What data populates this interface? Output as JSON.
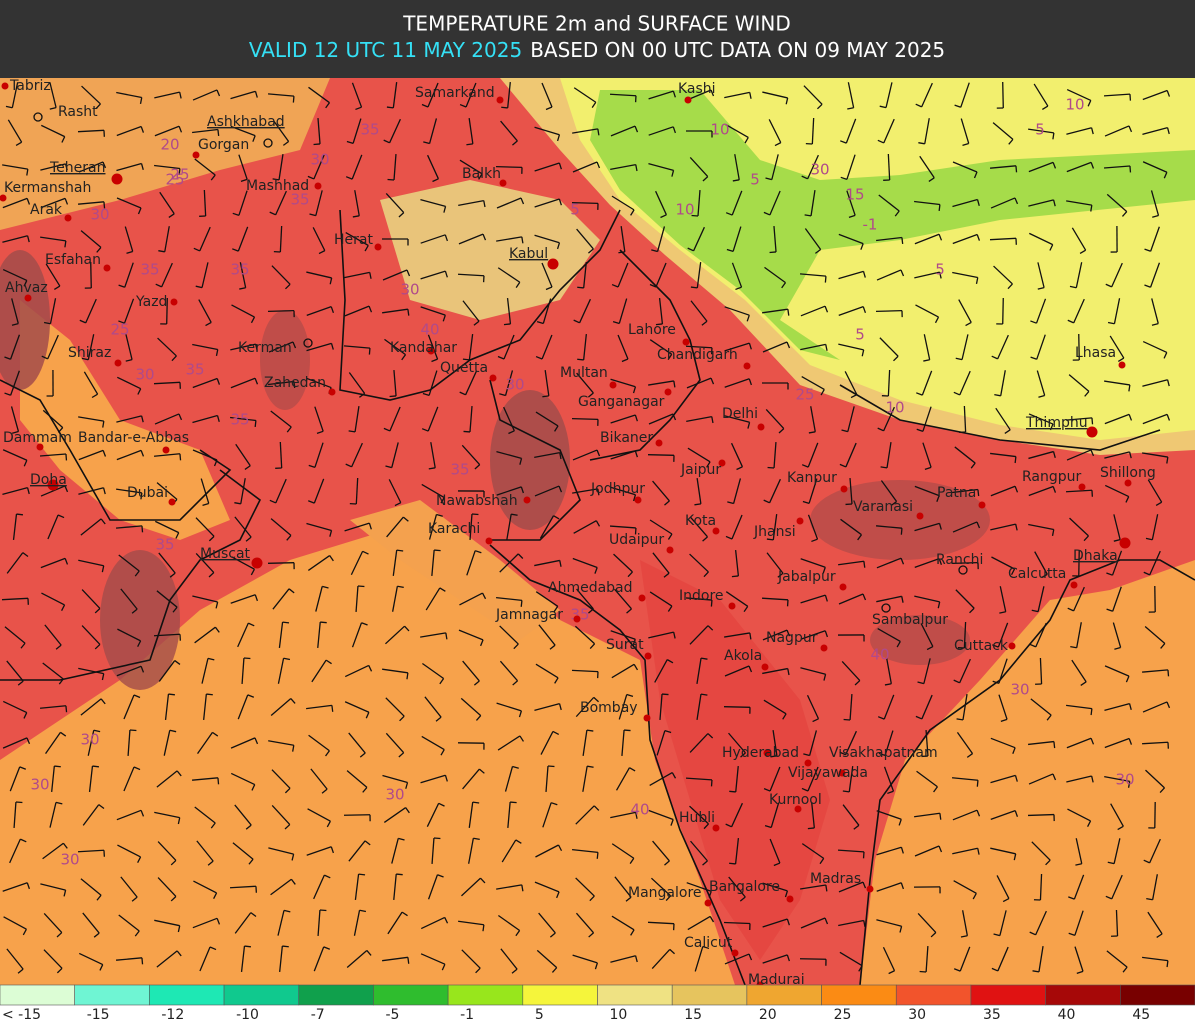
{
  "header": {
    "title": "TEMPERATURE 2m and SURFACE WIND",
    "valid": "VALID 12 UTC 11 MAY 2025",
    "based": "BASED ON 00 UTC DATA ON 09 MAY 2025"
  },
  "cities": [
    {
      "name": "Tabriz",
      "capital": false
    },
    {
      "name": "Rasht",
      "capital": false
    },
    {
      "name": "Ashkhabad",
      "capital": true
    },
    {
      "name": "Gorgan",
      "capital": false
    },
    {
      "name": "Teheran",
      "capital": true
    },
    {
      "name": "Mashhad",
      "capital": false
    },
    {
      "name": "Kermanshah",
      "capital": false
    },
    {
      "name": "Arak",
      "capital": false
    },
    {
      "name": "Samarkand",
      "capital": false
    },
    {
      "name": "Kashi",
      "capital": false
    },
    {
      "name": "Balkh",
      "capital": false
    },
    {
      "name": "Herat",
      "capital": false
    },
    {
      "name": "Kabul",
      "capital": true
    },
    {
      "name": "Esfahan",
      "capital": false
    },
    {
      "name": "Ahvaz",
      "capital": false
    },
    {
      "name": "Yazd",
      "capital": false
    },
    {
      "name": "Lahore",
      "capital": false
    },
    {
      "name": "Shiraz",
      "capital": false
    },
    {
      "name": "Kerman",
      "capital": false
    },
    {
      "name": "Kandahar",
      "capital": false
    },
    {
      "name": "Chandigarh",
      "capital": false
    },
    {
      "name": "Lhasa",
      "capital": false
    },
    {
      "name": "Multan",
      "capital": false
    },
    {
      "name": "Quetta",
      "capital": false
    },
    {
      "name": "Zahedan",
      "capital": false
    },
    {
      "name": "Ganganagar",
      "capital": false
    },
    {
      "name": "Delhi",
      "capital": false
    },
    {
      "name": "Thimphu",
      "capital": true
    },
    {
      "name": "Dammam",
      "capital": false
    },
    {
      "name": "Bandar-e-Abbas",
      "capital": false
    },
    {
      "name": "Bikaner",
      "capital": false
    },
    {
      "name": "Jaipur",
      "capital": false
    },
    {
      "name": "Shillong",
      "capital": false
    },
    {
      "name": "Kanpur",
      "capital": false
    },
    {
      "name": "Rangpur",
      "capital": false
    },
    {
      "name": "Doha",
      "capital": true
    },
    {
      "name": "Dubai",
      "capital": false
    },
    {
      "name": "Jodhpur",
      "capital": false
    },
    {
      "name": "Patna",
      "capital": false
    },
    {
      "name": "Nawabshah",
      "capital": false
    },
    {
      "name": "Varanasi",
      "capital": false
    },
    {
      "name": "Kota",
      "capital": false
    },
    {
      "name": "Karachi",
      "capital": false
    },
    {
      "name": "Jhansi",
      "capital": false
    },
    {
      "name": "Udaipur",
      "capital": false
    },
    {
      "name": "Dhaka",
      "capital": true
    },
    {
      "name": "Muscat",
      "capital": true
    },
    {
      "name": "Ranchi",
      "capital": false
    },
    {
      "name": "Calcutta",
      "capital": false
    },
    {
      "name": "Jabalpur",
      "capital": false
    },
    {
      "name": "Ahmedabad",
      "capital": false
    },
    {
      "name": "Indore",
      "capital": false
    },
    {
      "name": "Jamnagar",
      "capital": false
    },
    {
      "name": "Sambalpur",
      "capital": false
    },
    {
      "name": "Surat",
      "capital": false
    },
    {
      "name": "Nagpur",
      "capital": false
    },
    {
      "name": "Cuttack",
      "capital": false
    },
    {
      "name": "Akola",
      "capital": false
    },
    {
      "name": "Bombay",
      "capital": false
    },
    {
      "name": "Hyderabad",
      "capital": false
    },
    {
      "name": "Visakhapatnam",
      "capital": false
    },
    {
      "name": "Vijayawada",
      "capital": false
    },
    {
      "name": "Kurnool",
      "capital": false
    },
    {
      "name": "Hubli",
      "capital": false
    },
    {
      "name": "Madras",
      "capital": false
    },
    {
      "name": "Bangalore",
      "capital": false
    },
    {
      "name": "Mangalore",
      "capital": false
    },
    {
      "name": "Calicut",
      "capital": false
    },
    {
      "name": "Madurai",
      "capital": false
    }
  ],
  "contour_labels": [
    35,
    30,
    25,
    20,
    25,
    35,
    30,
    35,
    25,
    35,
    35,
    30,
    35,
    40,
    35,
    30,
    30,
    30,
    30,
    35,
    30,
    30,
    35,
    40,
    40,
    30,
    30,
    10,
    5,
    10,
    30,
    15,
    5,
    -1,
    5,
    10,
    5,
    5,
    25,
    10
  ],
  "legend": {
    "labels": [
      "< -15",
      "-15",
      "-12",
      "-10",
      "-7",
      "-5",
      "-1",
      "5",
      "10",
      "15",
      "20",
      "25",
      "30",
      "35",
      "40",
      "45"
    ],
    "colors": [
      "#dcfdd5",
      "#6ff5d3",
      "#1ee8b4",
      "#10c98e",
      "#10a04c",
      "#2fbd2e",
      "#98e61c",
      "#f5f53b",
      "#efe283",
      "#e6c45e",
      "#efa630",
      "#fb8b14",
      "#f2542c",
      "#e01212",
      "#a60808",
      "#780000"
    ]
  }
}
